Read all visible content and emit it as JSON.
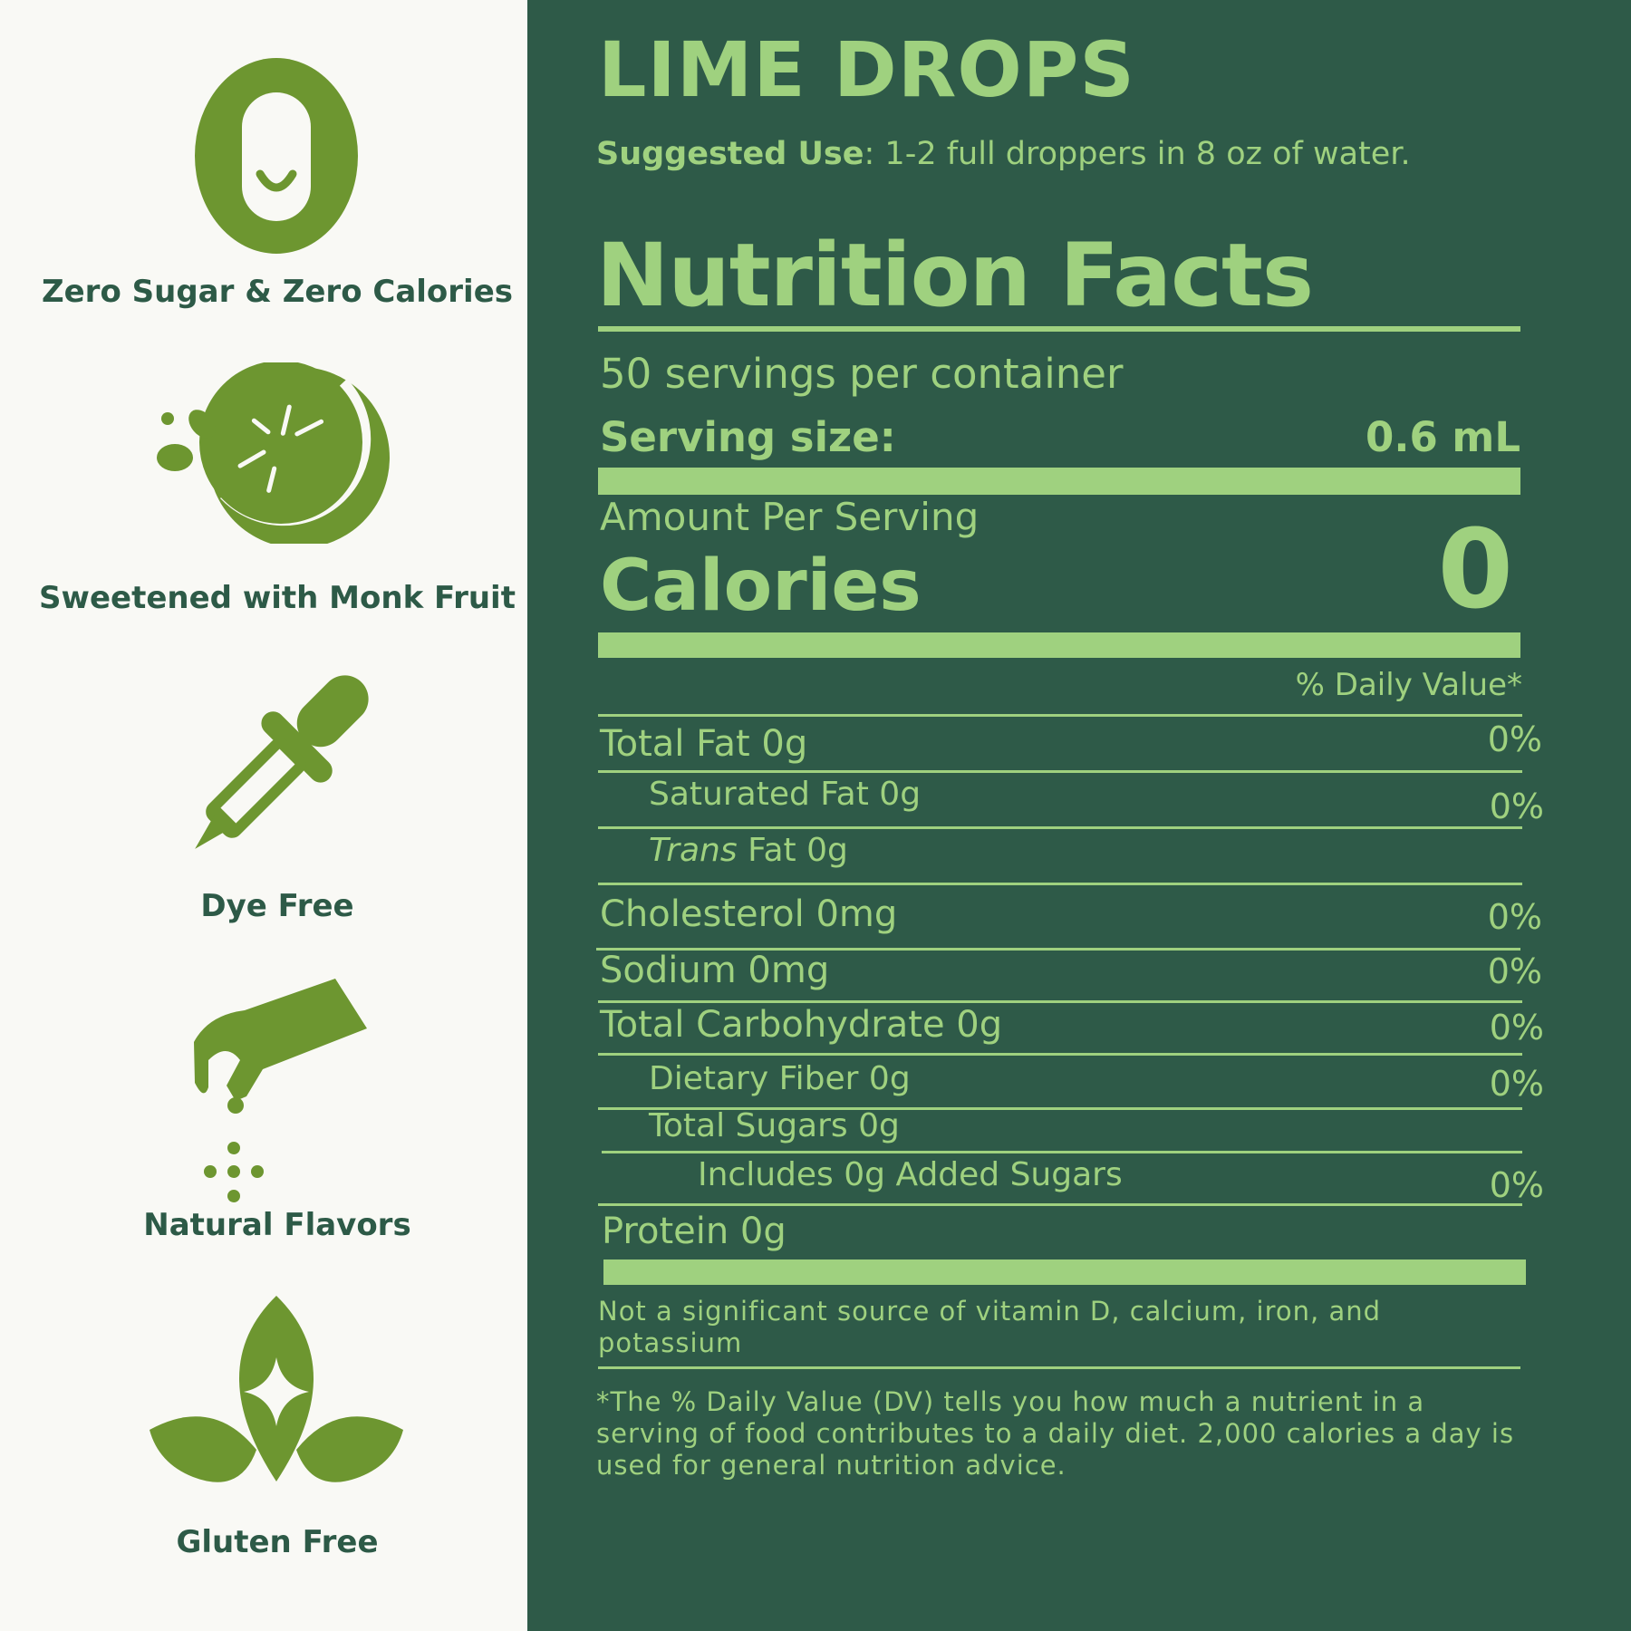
{
  "colors": {
    "left_background": "#f9f9f5",
    "right_background": "#2e5a48",
    "icon_green": "#6d9630",
    "label_text": "#2d5a47",
    "accent_light_green": "#9fd17f"
  },
  "features": [
    {
      "icon": "zero-smile-icon",
      "label": "Zero Sugar & Zero Calories"
    },
    {
      "icon": "lime-slice-icon",
      "label": "Sweetened with Monk Fruit"
    },
    {
      "icon": "dropper-icon",
      "label": "Dye Free"
    },
    {
      "icon": "pinching-hand-icon",
      "label": "Natural Flavors"
    },
    {
      "icon": "sparkle-leaves-icon",
      "label": "Gluten Free"
    }
  ],
  "product": {
    "name": "LIME DROPS",
    "suggested_use_label": "Suggested Use",
    "suggested_use_text": ": 1-2 full droppers in 8 oz of water."
  },
  "label": {
    "title": "Nutrition Facts",
    "servings_per_container": "50 servings per container",
    "serving_size_label": "Serving size:",
    "serving_size_value": "0.6 mL",
    "amount_per_serving": "Amount Per Serving",
    "calories_label": "Calories",
    "calories_value": "0",
    "daily_value_header": "% Daily Value*",
    "nutrients": [
      {
        "name": "Total Fat 0g",
        "dv": "0%"
      },
      {
        "name": "Saturated Fat 0g",
        "dv": "0%"
      },
      {
        "name_italic": "Trans",
        "name": " Fat 0g",
        "dv": ""
      },
      {
        "name": "Cholesterol 0mg",
        "dv": "0%"
      },
      {
        "name": "Sodium 0mg",
        "dv": "0%"
      },
      {
        "name": "Total Carbohydrate 0g",
        "dv": "0%"
      },
      {
        "name": "Dietary Fiber 0g",
        "dv": "0%"
      },
      {
        "name": "Total Sugars 0g",
        "dv": ""
      },
      {
        "name": "Includes 0g Added Sugars",
        "dv": "0%"
      },
      {
        "name": "Protein 0g",
        "dv": ""
      }
    ],
    "not_significant_note": "Not a significant source of vitamin D, calcium, iron, and potassium",
    "footnote": "*The % Daily Value (DV) tells you how much a nutrient in a serving of food contributes to a daily diet. 2,000 calories a day is used for general nutrition advice."
  }
}
